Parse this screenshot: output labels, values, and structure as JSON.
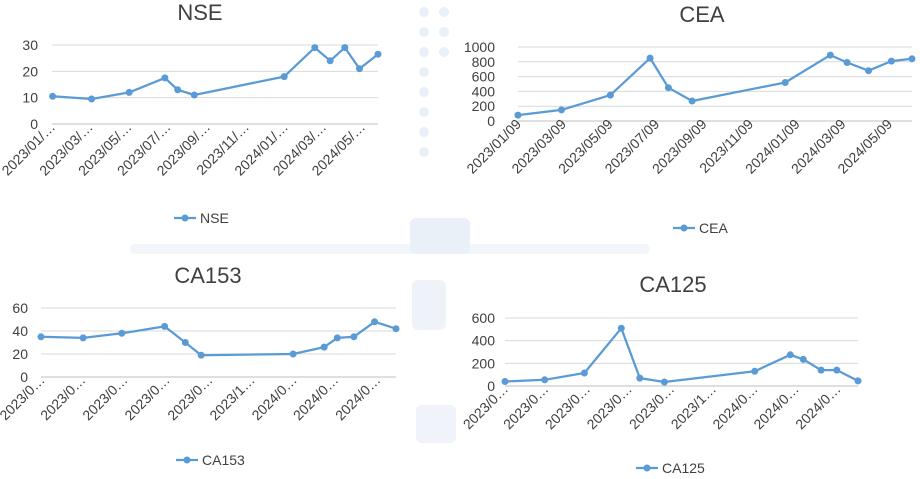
{
  "chart_data": [
    {
      "type": "line",
      "title": "NSE",
      "xlabel": "",
      "ylabel": "",
      "ylim": [
        0,
        30
      ],
      "yticks": [
        0,
        10,
        20,
        30
      ],
      "tick_labels_x": [
        "2023/01/…",
        "2023/03/…",
        "2023/05/…",
        "2023/07/…",
        "2023/09/…",
        "2023/11/…",
        "2024/01/…",
        "2024/03/…",
        "2024/05/…"
      ],
      "x_dates": [
        "2023-01-09",
        "2023-03-09",
        "2023-05-09",
        "2023-07-09",
        "2023-09-09",
        "2023-11-09",
        "2024-01-09",
        "2024-03-09",
        "2024-05-09"
      ],
      "grid": true,
      "legend": "bottom",
      "series": [
        {
          "name": "NSE",
          "color": "#5b9bd5",
          "x": [
            "2023-01-10",
            "2023-03-12",
            "2023-05-10",
            "2023-07-05",
            "2023-07-25",
            "2023-08-20",
            "2024-01-08",
            "2024-02-25",
            "2024-03-20",
            "2024-04-12",
            "2024-05-05",
            "2024-06-03"
          ],
          "y": [
            10.5,
            9.5,
            12,
            17.5,
            13,
            11,
            18,
            29,
            24,
            29,
            21,
            26.5
          ]
        }
      ]
    },
    {
      "type": "line",
      "title": "CEA",
      "xlabel": "",
      "ylabel": "",
      "ylim": [
        0,
        1000
      ],
      "yticks": [
        0,
        200,
        400,
        600,
        800,
        1000
      ],
      "tick_labels_x": [
        "2023/01/09",
        "2023/03/09",
        "2023/05/09",
        "2023/07/09",
        "2023/09/09",
        "2023/11/09",
        "2024/01/09",
        "2024/03/09",
        "2024/05/09"
      ],
      "x_dates": [
        "2023-01-09",
        "2023-03-09",
        "2023-05-09",
        "2023-07-09",
        "2023-09-09",
        "2023-11-09",
        "2024-01-09",
        "2024-03-09",
        "2024-05-09"
      ],
      "grid": true,
      "legend": "bottom",
      "series": [
        {
          "name": "CEA",
          "color": "#5b9bd5",
          "x": [
            "2023-01-09",
            "2023-03-07",
            "2023-05-10",
            "2023-07-01",
            "2023-07-25",
            "2023-08-25",
            "2023-12-25",
            "2024-02-22",
            "2024-03-15",
            "2024-04-12",
            "2024-05-12",
            "2024-06-08"
          ],
          "y": [
            80,
            150,
            350,
            850,
            450,
            270,
            520,
            890,
            790,
            680,
            810,
            840
          ]
        }
      ]
    },
    {
      "type": "line",
      "title": "CA153",
      "xlabel": "",
      "ylabel": "",
      "ylim": [
        0,
        60
      ],
      "yticks": [
        0,
        20,
        40,
        60
      ],
      "tick_labels_x": [
        "2023/0…",
        "2023/0…",
        "2023/0…",
        "2023/0…",
        "2023/0…",
        "2023/1…",
        "2024/0…",
        "2024/0…",
        "2024/0…"
      ],
      "x_dates": [
        "2023-01-09",
        "2023-03-09",
        "2023-05-09",
        "2023-07-09",
        "2023-09-09",
        "2023-11-09",
        "2024-01-09",
        "2024-03-09",
        "2024-05-09"
      ],
      "grid": true,
      "legend": "bottom",
      "series": [
        {
          "name": "CA153",
          "color": "#5b9bd5",
          "x": [
            "2023-01-08",
            "2023-03-10",
            "2023-05-05",
            "2023-07-06",
            "2023-08-05",
            "2023-08-28",
            "2024-01-08",
            "2024-02-22",
            "2024-03-12",
            "2024-04-05",
            "2024-05-05",
            "2024-06-05"
          ],
          "y": [
            35,
            34,
            38,
            44,
            30,
            19,
            20,
            26,
            34,
            35,
            48,
            42
          ]
        }
      ]
    },
    {
      "type": "line",
      "title": "CA125",
      "xlabel": "",
      "ylabel": "",
      "ylim": [
        0,
        600
      ],
      "yticks": [
        0,
        200,
        400,
        600
      ],
      "tick_labels_x": [
        "2023/0…",
        "2023/0…",
        "2023/0…",
        "2023/0…",
        "2023/0…",
        "2023/1…",
        "2024/0…",
        "2024/0…",
        "2024/0…"
      ],
      "x_dates": [
        "2023-01-09",
        "2023-03-09",
        "2023-05-09",
        "2023-07-09",
        "2023-09-09",
        "2023-11-09",
        "2024-01-09",
        "2024-03-09",
        "2024-05-09"
      ],
      "grid": true,
      "legend": "bottom",
      "series": [
        {
          "name": "CA125",
          "color": "#5b9bd5",
          "x": [
            "2023-01-09",
            "2023-03-08",
            "2023-05-05",
            "2023-06-28",
            "2023-07-25",
            "2023-08-30",
            "2024-01-09",
            "2024-03-01",
            "2024-03-20",
            "2024-04-15",
            "2024-05-08",
            "2024-06-08"
          ],
          "y": [
            40,
            55,
            115,
            510,
            70,
            35,
            130,
            275,
            235,
            140,
            140,
            45
          ]
        }
      ]
    }
  ]
}
